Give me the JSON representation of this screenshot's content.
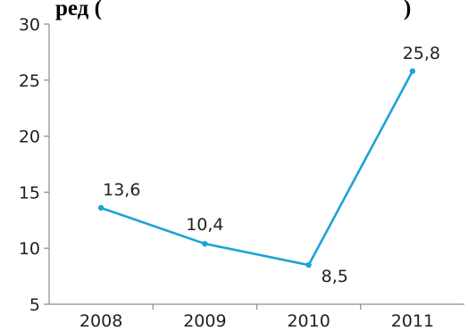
{
  "chart_data": {
    "type": "line",
    "title": "ред (",
    "title_suffix": ")",
    "categories": [
      "2008",
      "2009",
      "2010",
      "2011"
    ],
    "series": [
      {
        "values": [
          13.6,
          10.4,
          8.5,
          25.8
        ],
        "value_labels": [
          "13,6",
          "10,4",
          "8,5",
          "25,8"
        ],
        "color": "#1ca3d6"
      }
    ],
    "y_ticks": [
      "5",
      "10",
      "15",
      "20",
      "25",
      "30"
    ],
    "ylim": [
      5,
      30
    ],
    "grid": false,
    "axis_color": "#8c8c8c"
  }
}
